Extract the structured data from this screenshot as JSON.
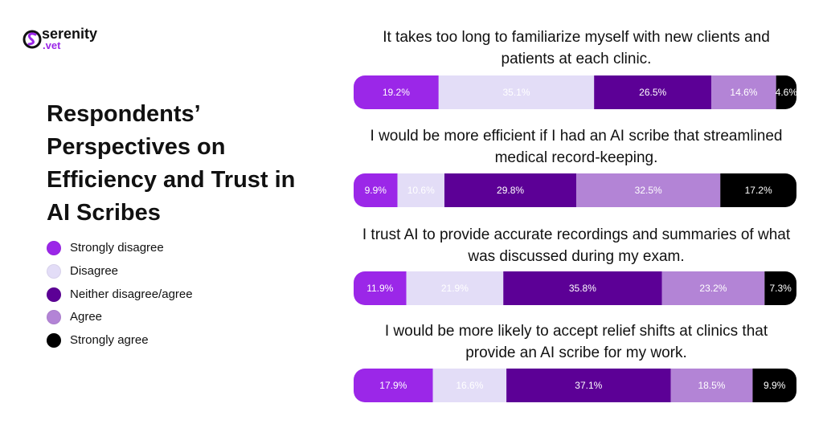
{
  "logo": {
    "name": "serenity",
    "suffix": ".vet"
  },
  "chart_data": {
    "type": "stacked-bar-horizontal",
    "title": "Respondents’ Perspectives on Efficiency and Trust in AI Scribes",
    "categories": [
      "It takes too long to familiarize myself with new clients and patients at each clinic.",
      "I would be more efficient if I had an AI scribe that streamlined medical record-keeping.",
      "I trust AI to provide accurate recordings and summaries of what was discussed during my exam.",
      "I would be more likely to accept relief shifts at clinics that provide an AI scribe for my work."
    ],
    "xlim": [
      0,
      100
    ],
    "series": [
      {
        "name": "Strongly disagree",
        "color": "#9b27e8",
        "values": [
          19.2,
          9.9,
          11.9,
          17.9
        ],
        "value_labels": [
          "19.2%",
          "9.9%",
          "11.9%",
          "17.9%"
        ]
      },
      {
        "name": "Disagree",
        "color": "#e3ddf7",
        "values": [
          35.1,
          10.6,
          21.9,
          16.6
        ],
        "value_labels": [
          "35.1%",
          "10.6%",
          "21.9%",
          "16.6%"
        ]
      },
      {
        "name": "Neither disagree/agree",
        "color": "#5c0096",
        "values": [
          26.5,
          29.8,
          35.8,
          37.1
        ],
        "value_labels": [
          "26.5%",
          "29.8%",
          "35.8%",
          "37.1%"
        ]
      },
      {
        "name": "Agree",
        "color": "#b384d6",
        "values": [
          14.6,
          32.5,
          23.2,
          18.5
        ],
        "value_labels": [
          "14.6%",
          "32.5%",
          "23.2%",
          "18.5%"
        ]
      },
      {
        "name": "Strongly agree",
        "color": "#000000",
        "values": [
          4.6,
          17.2,
          7.3,
          9.9
        ],
        "value_labels": [
          "4.6%",
          "17.2%",
          "7.3%",
          "9.9%"
        ]
      }
    ]
  }
}
